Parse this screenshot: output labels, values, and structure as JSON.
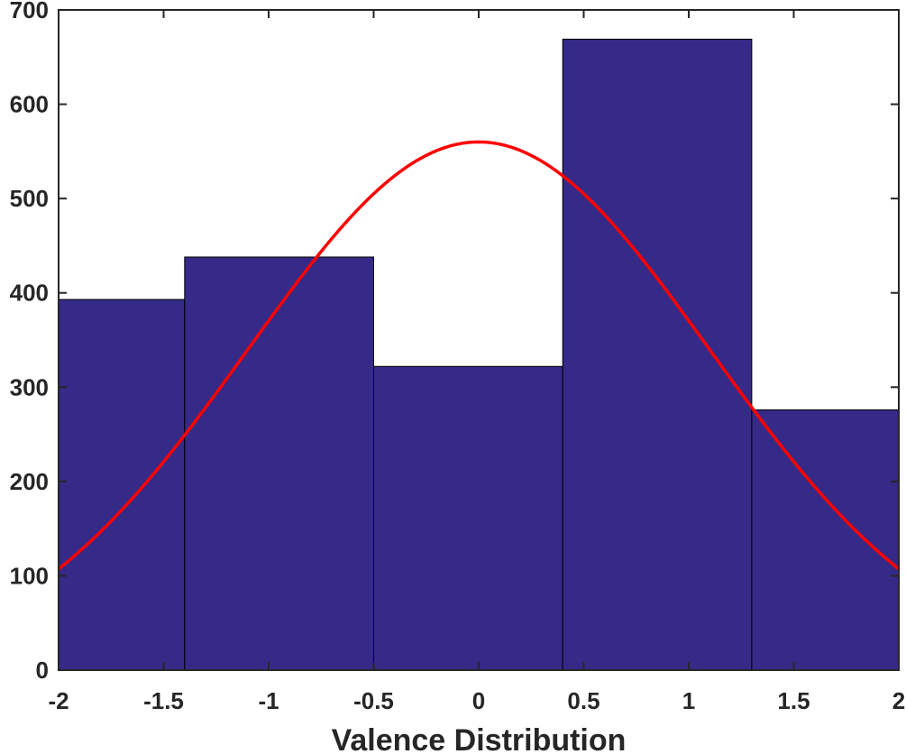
{
  "chart_data": {
    "type": "bar",
    "title": "",
    "xlabel": "Valence Distribution",
    "ylabel": "",
    "xlim": [
      -2,
      2
    ],
    "ylim": [
      0,
      700
    ],
    "xticks": [
      "-2",
      "-1.5",
      "-1",
      "-0.5",
      "0",
      "0.5",
      "1",
      "1.5",
      "2"
    ],
    "yticks": [
      "0",
      "100",
      "200",
      "300",
      "400",
      "500",
      "600",
      "700"
    ],
    "grid": false,
    "legend": "none",
    "bins": [
      {
        "x0": -2.0,
        "x1": -1.4,
        "value": 393
      },
      {
        "x0": -1.4,
        "x1": -0.5,
        "value": 438
      },
      {
        "x0": -0.5,
        "x1": 0.4,
        "value": 322
      },
      {
        "x0": 0.4,
        "x1": 1.3,
        "value": 669
      },
      {
        "x0": 1.3,
        "x1": 2.0,
        "value": 276
      }
    ],
    "fit_curve": {
      "type": "normal",
      "mean": 0.0,
      "peak": 560,
      "sigma": 1.1,
      "x_range": [
        -2,
        2
      ]
    },
    "colors": {
      "bar_fill": "#352A87",
      "bar_edge": "#000000",
      "curve": "#FF0000",
      "axis": "#262626"
    }
  }
}
